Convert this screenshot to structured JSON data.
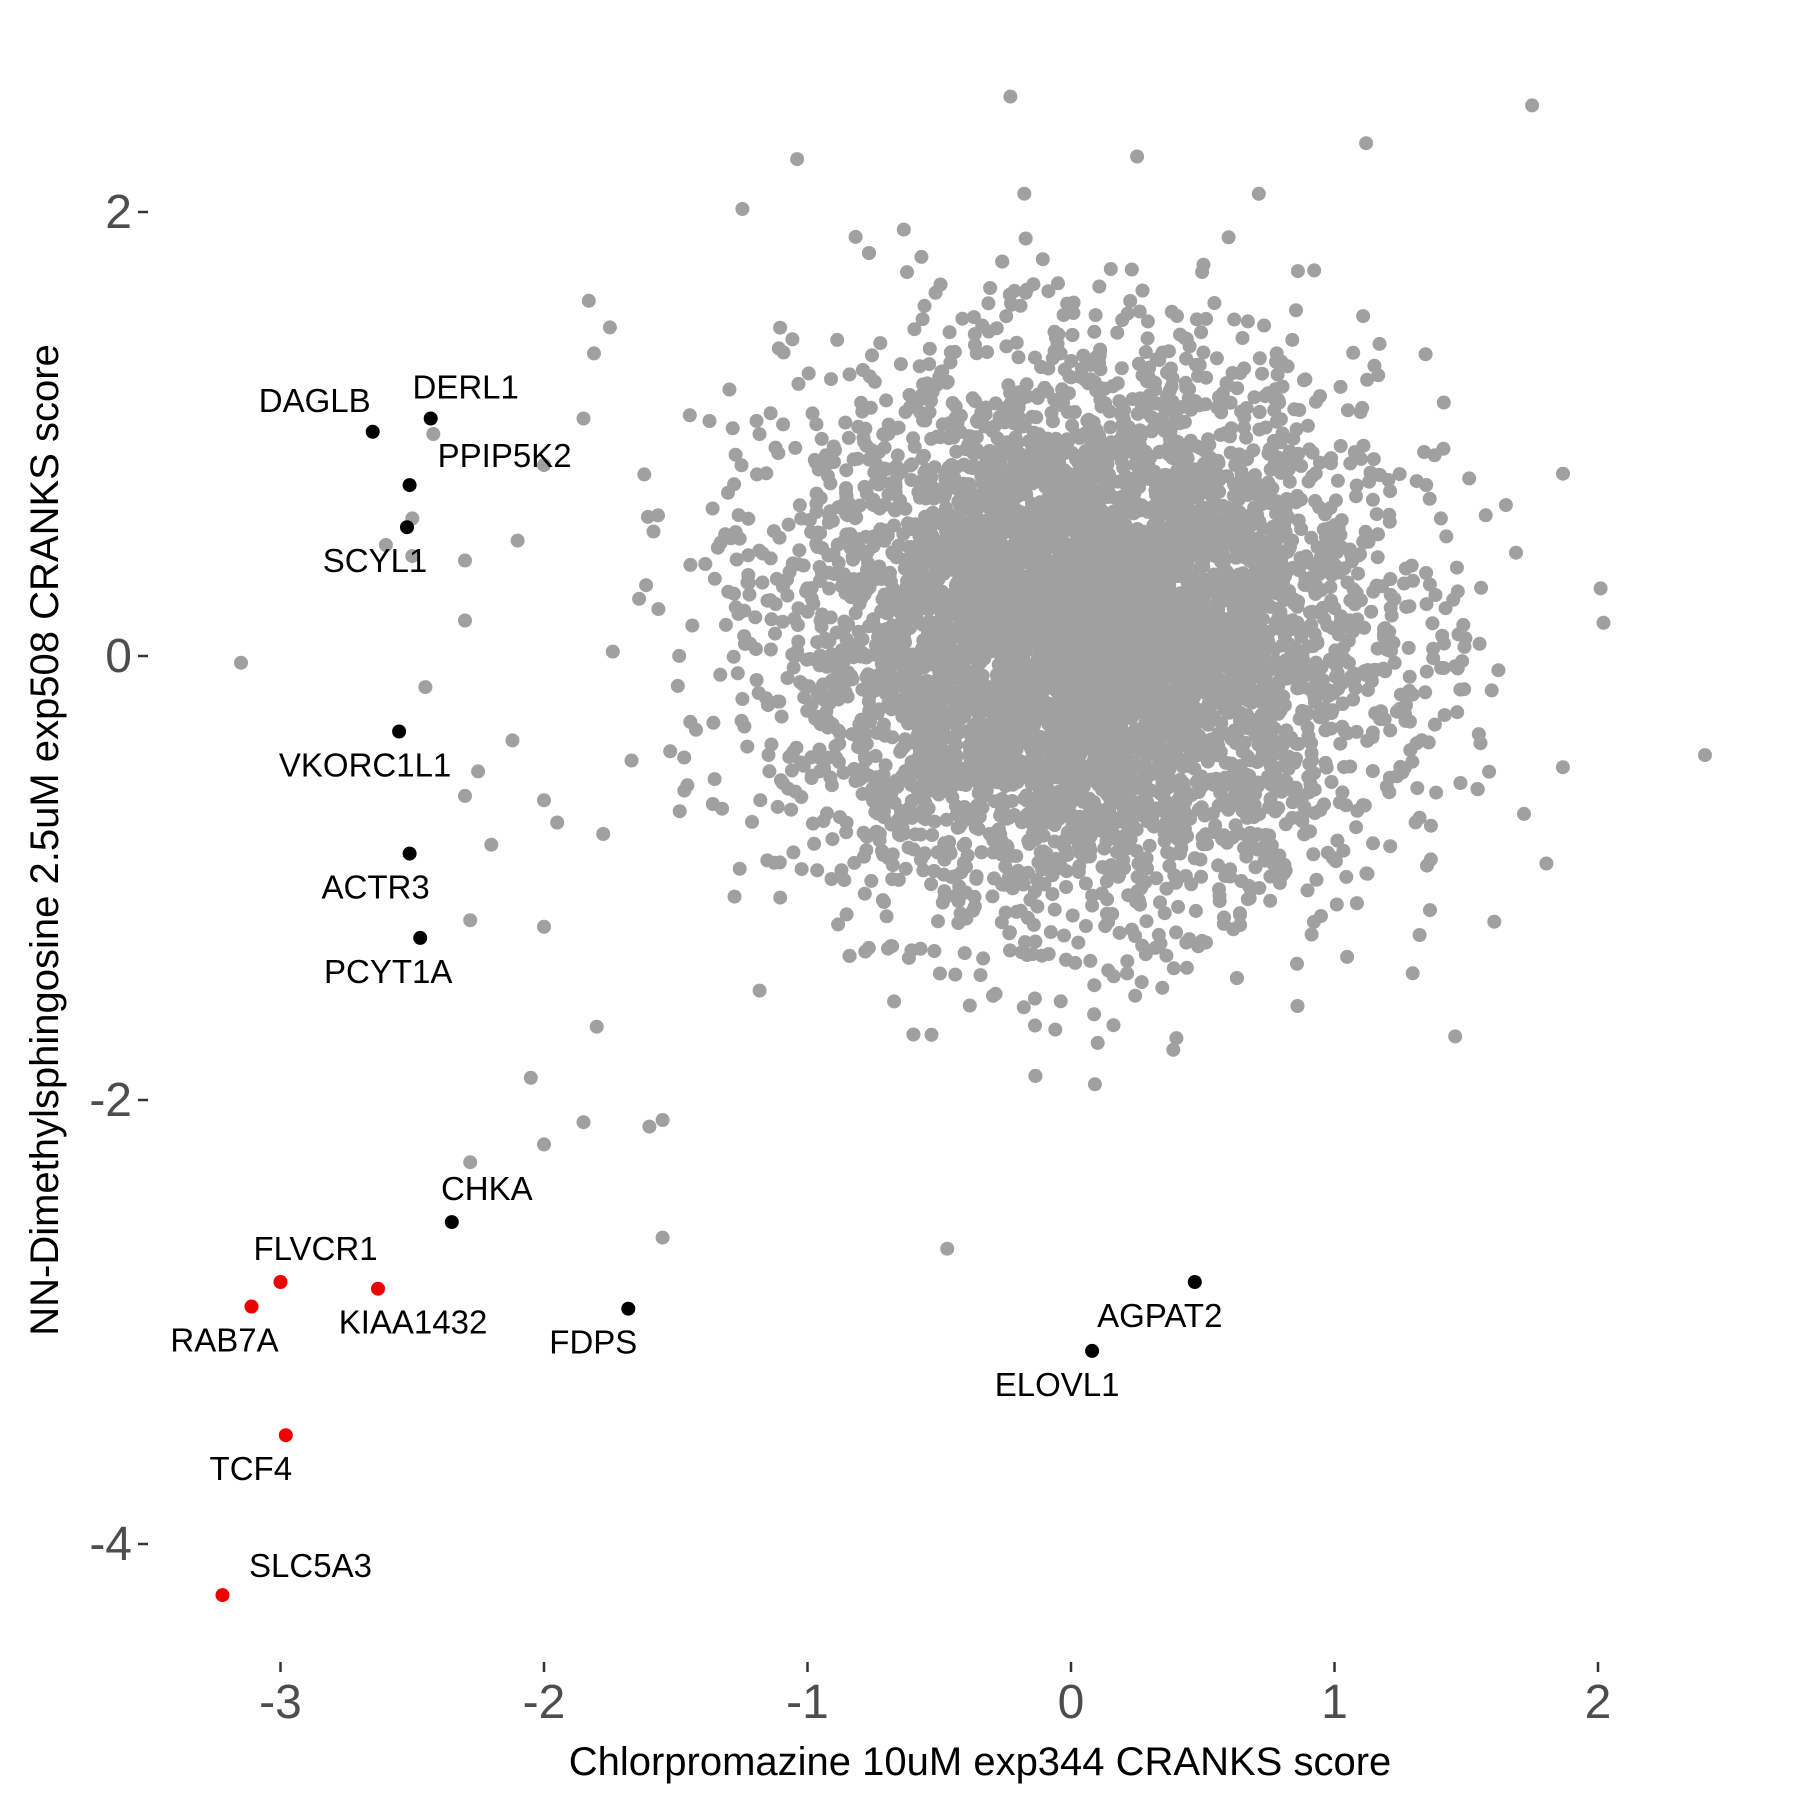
{
  "chart_data": {
    "type": "scatter",
    "xlabel": "Chlorpromazine 10uM exp344 CRANKS score",
    "ylabel": "NN-Dimethylsphingosine 2.5uM exp508 CRANKS score",
    "xlim": [
      -3.55,
      2.6
    ],
    "ylim": [
      -4.6,
      2.55
    ],
    "x_ticks": [
      -3,
      -2,
      -1,
      0,
      1,
      2
    ],
    "x_tick_labels": [
      "-3",
      "-2",
      "-1",
      "0",
      "1",
      "2"
    ],
    "y_ticks": [
      -4,
      -2,
      0,
      2
    ],
    "y_tick_labels": [
      "-4",
      "-2",
      "0",
      "2"
    ],
    "grid": false,
    "legend": "none",
    "colors": {
      "background_points": "#a0a0a0",
      "highlight_black": "#000000",
      "highlight_red": "#ee0000",
      "tick_text": "#4d4d4d"
    },
    "background_cloud": {
      "description_count": 6000,
      "center": [
        0.05,
        0.1
      ],
      "sd": [
        0.55,
        0.6
      ]
    },
    "sparse_background_points": [
      [
        -3.15,
        -0.03
      ],
      [
        -2.6,
        0.5
      ],
      [
        -2.5,
        0.45
      ],
      [
        -2.3,
        0.43
      ],
      [
        -2.1,
        0.52
      ],
      [
        -2.3,
        0.16
      ],
      [
        -2.45,
        -0.14
      ],
      [
        -2.25,
        -0.52
      ],
      [
        -2.3,
        -0.63
      ],
      [
        -2.12,
        -0.38
      ],
      [
        -2.2,
        -0.85
      ],
      [
        -2.0,
        -0.65
      ],
      [
        -1.95,
        -0.75
      ],
      [
        -2.28,
        -1.19
      ],
      [
        -2.0,
        -1.22
      ],
      [
        -1.8,
        -1.67
      ],
      [
        -2.05,
        -1.9
      ],
      [
        -2.0,
        -2.2
      ],
      [
        -1.85,
        -2.1
      ],
      [
        -2.28,
        -2.28
      ],
      [
        -1.6,
        -2.12
      ],
      [
        -1.55,
        -2.09
      ],
      [
        -1.55,
        -2.62
      ],
      [
        -0.47,
        -2.67
      ],
      [
        -0.23,
        2.52
      ],
      [
        1.75,
        2.48
      ],
      [
        1.12,
        2.31
      ],
      [
        -2.0,
        0.86
      ],
      [
        -1.85,
        1.07
      ],
      [
        -1.75,
        1.48
      ],
      [
        -1.83,
        1.6
      ],
      [
        -2.42,
        1.0
      ],
      [
        -2.5,
        0.62
      ]
    ],
    "highlighted_points": [
      {
        "gene": "DAGLB",
        "x": -2.65,
        "y": 1.01,
        "color": "black",
        "label_pos": "upper-left"
      },
      {
        "gene": "DERL1",
        "x": -2.43,
        "y": 1.07,
        "color": "black",
        "label_pos": "above"
      },
      {
        "gene": "PPIP5K2",
        "x": -2.51,
        "y": 0.77,
        "color": "black",
        "label_pos": "upper-right"
      },
      {
        "gene": "SCYL1",
        "x": -2.52,
        "y": 0.58,
        "color": "black",
        "label_pos": "below"
      },
      {
        "gene": "VKORC1L1",
        "x": -2.55,
        "y": -0.34,
        "color": "black",
        "label_pos": "below"
      },
      {
        "gene": "ACTR3",
        "x": -2.51,
        "y": -0.89,
        "color": "black",
        "label_pos": "below"
      },
      {
        "gene": "PCYT1A",
        "x": -2.47,
        "y": -1.27,
        "color": "black",
        "label_pos": "below"
      },
      {
        "gene": "CHKA",
        "x": -2.35,
        "y": -2.55,
        "color": "black",
        "label_pos": "above"
      },
      {
        "gene": "FDPS",
        "x": -1.68,
        "y": -2.94,
        "color": "black",
        "label_pos": "below"
      },
      {
        "gene": "AGPAT2",
        "x": 0.47,
        "y": -2.82,
        "color": "black",
        "label_pos": "below"
      },
      {
        "gene": "ELOVL1",
        "x": 0.08,
        "y": -3.13,
        "color": "black",
        "label_pos": "below"
      },
      {
        "gene": "FLVCR1",
        "x": -3.0,
        "y": -2.82,
        "color": "red",
        "label_pos": "above"
      },
      {
        "gene": "KIAA1432",
        "x": -2.63,
        "y": -2.85,
        "color": "red",
        "label_pos": "below"
      },
      {
        "gene": "RAB7A",
        "x": -3.11,
        "y": -2.93,
        "color": "red",
        "label_pos": "below"
      },
      {
        "gene": "TCF4",
        "x": -2.98,
        "y": -3.51,
        "color": "red",
        "label_pos": "below"
      },
      {
        "gene": "SLC5A3",
        "x": -3.22,
        "y": -4.23,
        "color": "red",
        "label_pos": "upper-right"
      }
    ]
  }
}
